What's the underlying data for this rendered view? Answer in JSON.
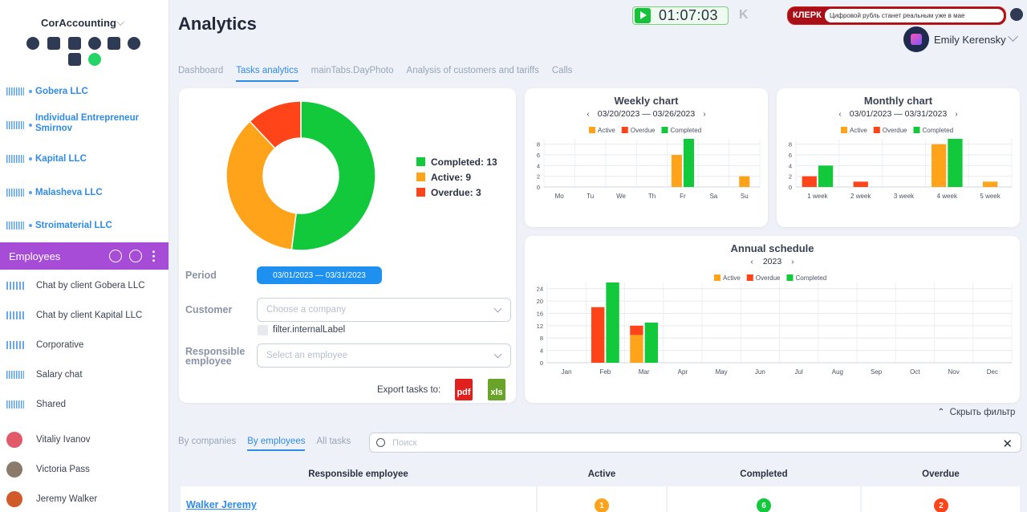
{
  "sidebar": {
    "brand": "CorAccounting",
    "companies": [
      "Gobera LLC",
      "Individual Entrepreneur Smirnov",
      "Kapital LLC",
      "Malasheva LLC",
      "Stroimaterial LLC"
    ],
    "employees_label": "Employees",
    "chats": [
      "Chat by client Gobera LLC",
      "Chat by client Kapital LLC",
      "Corporative",
      "Salary chat",
      "Shared"
    ],
    "people": [
      "Vitaliy Ivanov",
      "Victoria Pass",
      "Jeremy Walker"
    ]
  },
  "header": {
    "title": "Analytics",
    "timer": "01:07:03",
    "news_logo": "КЛЕРК",
    "news_text": "Цифровой рубль станет реальным уже в мае",
    "user_name": "Emily Kerensky"
  },
  "tabs": [
    "Dashboard",
    "Tasks analytics",
    "mainTabs.DayPhoto",
    "Analysis of customers and tariffs",
    "Calls"
  ],
  "colors": {
    "completed": "#12c93c",
    "active": "#ffa31a",
    "overdue": "#ff4419",
    "accent": "#2e8be6",
    "employees_bar": "#a64cd6"
  },
  "summary": {
    "legend": [
      {
        "label": "Completed: 13",
        "color": "#12c93c"
      },
      {
        "label": "Active: 9",
        "color": "#ffa31a"
      },
      {
        "label": "Overdue: 3",
        "color": "#ff4419"
      }
    ]
  },
  "filters": {
    "period_label": "Period",
    "period_value": "03/01/2023 — 03/31/2023",
    "customer_label": "Customer",
    "customer_placeholder": "Choose a company",
    "internal_label": "filter.internalLabel",
    "responsible_label": "Responsible employee",
    "employee_placeholder": "Select an employee",
    "export_label": "Export tasks to:",
    "pdf": "pdf",
    "xls": "xls"
  },
  "legend_labels": {
    "active": "Active",
    "overdue": "Overdue",
    "completed": "Completed"
  },
  "hide_filter": "Скрыть фильтр",
  "bottom_tabs": [
    "By companies",
    "By employees",
    "All tasks"
  ],
  "search_placeholder": "Поиск",
  "table": {
    "headers": [
      "Responsible employee",
      "Active",
      "Completed",
      "Overdue"
    ],
    "rows": [
      {
        "employee": "Walker Jeremy",
        "active": "1",
        "completed": "6",
        "overdue": "2"
      }
    ]
  },
  "chart_data": [
    {
      "type": "pie",
      "categories": [
        "Completed",
        "Active",
        "Overdue"
      ],
      "values": [
        13,
        9,
        3
      ]
    },
    {
      "type": "bar",
      "title": "Weekly chart",
      "range": "03/20/2023 — 03/26/2023",
      "categories": [
        "Mo",
        "Tu",
        "We",
        "Th",
        "Fr",
        "Sa",
        "Su"
      ],
      "series": [
        {
          "name": "Active",
          "values": [
            0,
            0,
            0,
            0,
            6,
            0,
            2
          ]
        },
        {
          "name": "Overdue",
          "values": [
            0,
            0,
            0,
            0,
            0,
            0,
            0
          ]
        },
        {
          "name": "Completed",
          "values": [
            0,
            0,
            0,
            0,
            9,
            0,
            0
          ]
        }
      ],
      "yticks": [
        "0",
        "2",
        "4",
        "6",
        "8"
      ],
      "ylim": [
        0,
        9
      ]
    },
    {
      "type": "bar",
      "title": "Monthly chart",
      "range": "03/01/2023 — 03/31/2023",
      "categories": [
        "1 week",
        "2 week",
        "3 week",
        "4 week",
        "5 week"
      ],
      "series": [
        {
          "name": "Active",
          "values": [
            0,
            0,
            0,
            8,
            1
          ]
        },
        {
          "name": "Overdue",
          "values": [
            2,
            1,
            0,
            0,
            0
          ]
        },
        {
          "name": "Completed",
          "values": [
            4,
            0,
            0,
            9,
            0
          ]
        }
      ],
      "yticks": [
        "0",
        "2",
        "4",
        "6",
        "8"
      ],
      "ylim": [
        0,
        9
      ]
    },
    {
      "type": "bar",
      "title": "Annual schedule",
      "range": "2023",
      "categories": [
        "Jan",
        "Feb",
        "Mar",
        "Apr",
        "May",
        "Jun",
        "Jul",
        "Aug",
        "Sep",
        "Oct",
        "Nov",
        "Dec"
      ],
      "stacked_active_overdue": true,
      "series": [
        {
          "name": "Active",
          "values": [
            0,
            0,
            9,
            0,
            0,
            0,
            0,
            0,
            0,
            0,
            0,
            0
          ]
        },
        {
          "name": "Overdue",
          "values": [
            0,
            18,
            3,
            0,
            0,
            0,
            0,
            0,
            0,
            0,
            0,
            0
          ]
        },
        {
          "name": "Completed",
          "values": [
            0,
            26,
            13,
            0,
            0,
            0,
            0,
            0,
            0,
            0,
            0,
            0
          ]
        }
      ],
      "yticks": [
        "0",
        "4",
        "8",
        "12",
        "16",
        "20",
        "24"
      ],
      "ylim": [
        0,
        26
      ]
    }
  ]
}
